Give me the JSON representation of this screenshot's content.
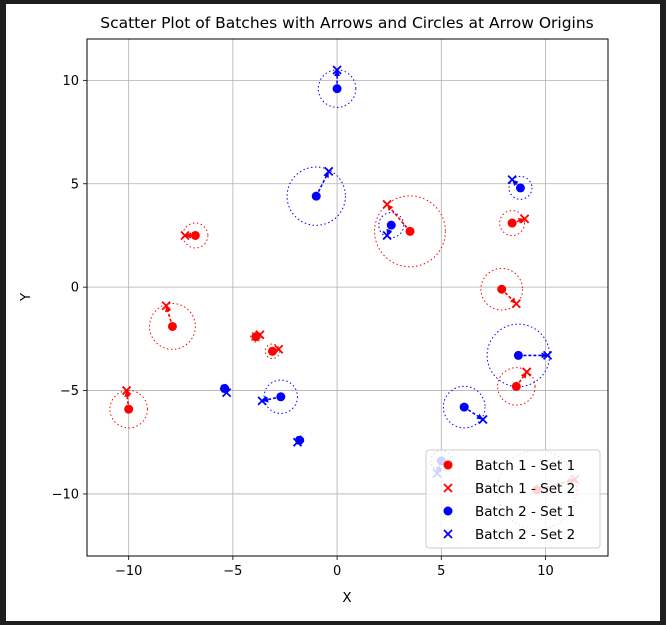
{
  "chart_data": {
    "type": "scatter",
    "title": "Scatter Plot of Batches with Arrows and Circles at Arrow Origins",
    "xlabel": "X",
    "ylabel": "Y",
    "xlim": [
      -12,
      13
    ],
    "ylim": [
      -13,
      12
    ],
    "xticks": [
      -10,
      -5,
      0,
      5,
      10
    ],
    "xtick_labels": [
      "−10",
      "−5",
      "0",
      "5",
      "10"
    ],
    "yticks": [
      -10,
      -5,
      0,
      5,
      10
    ],
    "ytick_labels": [
      "−10",
      "−5",
      "0",
      "5",
      "10"
    ],
    "grid": true,
    "legend_position": "lower-right",
    "series": [
      {
        "name": "Batch 1 - Set 1",
        "marker": "circle",
        "color": "#ff0000",
        "points": [
          [
            -6.8,
            2.5
          ],
          [
            3.5,
            2.7
          ],
          [
            8.4,
            3.1
          ],
          [
            7.9,
            -0.1
          ],
          [
            8.6,
            -4.8
          ],
          [
            -7.9,
            -1.9
          ],
          [
            -10,
            -5.9
          ],
          [
            -3.1,
            -3.1
          ],
          [
            -3.9,
            -2.4
          ],
          [
            9.6,
            -9.8
          ]
        ]
      },
      {
        "name": "Batch 1 - Set 2",
        "marker": "x",
        "color": "#ff0000",
        "points": [
          [
            -7.3,
            2.5
          ],
          [
            2.4,
            4.0
          ],
          [
            9.0,
            3.3
          ],
          [
            8.6,
            -0.8
          ],
          [
            9.1,
            -4.1
          ],
          [
            -8.2,
            -0.9
          ],
          [
            -10.1,
            -5.0
          ],
          [
            -2.8,
            -3.0
          ],
          [
            -3.7,
            -2.3
          ],
          [
            11.4,
            -9.3
          ]
        ]
      },
      {
        "name": "Batch 2 - Set 1",
        "marker": "circle",
        "color": "#0000ff",
        "points": [
          [
            0,
            9.6
          ],
          [
            -1,
            4.4
          ],
          [
            2.6,
            3.0
          ],
          [
            8.8,
            4.8
          ],
          [
            8.7,
            -3.3
          ],
          [
            6.1,
            -5.8
          ],
          [
            -2.7,
            -5.3
          ],
          [
            -5.4,
            -4.9
          ],
          [
            -1.8,
            -7.4
          ],
          [
            5.0,
            -8.4
          ]
        ]
      },
      {
        "name": "Batch 2 - Set 2",
        "marker": "x",
        "color": "#0000ff",
        "points": [
          [
            0,
            10.5
          ],
          [
            -0.4,
            5.6
          ],
          [
            2.4,
            2.5
          ],
          [
            8.4,
            5.2
          ],
          [
            10.1,
            -3.3
          ],
          [
            7.0,
            -6.4
          ],
          [
            -3.6,
            -5.5
          ],
          [
            -5.3,
            -5.1
          ],
          [
            -1.9,
            -7.5
          ],
          [
            4.8,
            -9.0
          ]
        ]
      }
    ],
    "arrows": [
      {
        "from": [
          -6.8,
          2.5
        ],
        "to": [
          -7.3,
          2.5
        ],
        "color": "#ff0000"
      },
      {
        "from": [
          3.5,
          2.7
        ],
        "to": [
          2.4,
          4.0
        ],
        "color": "#ff0000"
      },
      {
        "from": [
          8.4,
          3.1
        ],
        "to": [
          9.0,
          3.3
        ],
        "color": "#ff0000"
      },
      {
        "from": [
          7.9,
          -0.1
        ],
        "to": [
          8.6,
          -0.8
        ],
        "color": "#ff0000"
      },
      {
        "from": [
          8.6,
          -4.8
        ],
        "to": [
          9.1,
          -4.1
        ],
        "color": "#ff0000"
      },
      {
        "from": [
          -7.9,
          -1.9
        ],
        "to": [
          -8.2,
          -0.9
        ],
        "color": "#ff0000"
      },
      {
        "from": [
          -10,
          -5.9
        ],
        "to": [
          -10.1,
          -5.0
        ],
        "color": "#ff0000"
      },
      {
        "from": [
          -3.1,
          -3.1
        ],
        "to": [
          -2.8,
          -3.0
        ],
        "color": "#ff0000"
      },
      {
        "from": [
          -3.9,
          -2.4
        ],
        "to": [
          -3.7,
          -2.3
        ],
        "color": "#ff0000"
      },
      {
        "from": [
          9.6,
          -9.8
        ],
        "to": [
          11.4,
          -9.3
        ],
        "color": "#ff0000"
      },
      {
        "from": [
          0,
          9.6
        ],
        "to": [
          0,
          10.5
        ],
        "color": "#0000ff"
      },
      {
        "from": [
          -1,
          4.4
        ],
        "to": [
          -0.4,
          5.6
        ],
        "color": "#0000ff"
      },
      {
        "from": [
          2.6,
          3.0
        ],
        "to": [
          2.4,
          2.5
        ],
        "color": "#0000ff"
      },
      {
        "from": [
          8.8,
          4.8
        ],
        "to": [
          8.4,
          5.2
        ],
        "color": "#0000ff"
      },
      {
        "from": [
          8.7,
          -3.3
        ],
        "to": [
          10.1,
          -3.3
        ],
        "color": "#0000ff"
      },
      {
        "from": [
          6.1,
          -5.8
        ],
        "to": [
          7.0,
          -6.4
        ],
        "color": "#0000ff"
      },
      {
        "from": [
          -2.7,
          -5.3
        ],
        "to": [
          -3.6,
          -5.5
        ],
        "color": "#0000ff"
      },
      {
        "from": [
          -5.4,
          -4.9
        ],
        "to": [
          -5.3,
          -5.1
        ],
        "color": "#0000ff"
      },
      {
        "from": [
          -1.8,
          -7.4
        ],
        "to": [
          -1.9,
          -7.5
        ],
        "color": "#0000ff"
      },
      {
        "from": [
          5.0,
          -8.4
        ],
        "to": [
          4.8,
          -9.0
        ],
        "color": "#0000ff"
      }
    ],
    "circles": [
      {
        "center": [
          -6.8,
          2.5
        ],
        "radius": 0.6,
        "color": "#ff0000"
      },
      {
        "center": [
          3.5,
          2.7
        ],
        "radius": 1.7,
        "color": "#ff0000"
      },
      {
        "center": [
          8.4,
          3.1
        ],
        "radius": 0.6,
        "color": "#ff0000"
      },
      {
        "center": [
          7.9,
          -0.1
        ],
        "radius": 1.0,
        "color": "#ff0000"
      },
      {
        "center": [
          8.6,
          -4.8
        ],
        "radius": 0.9,
        "color": "#ff0000"
      },
      {
        "center": [
          -7.9,
          -1.9
        ],
        "radius": 1.1,
        "color": "#ff0000"
      },
      {
        "center": [
          -10,
          -5.9
        ],
        "radius": 0.9,
        "color": "#ff0000"
      },
      {
        "center": [
          -3.1,
          -3.1
        ],
        "radius": 0.35,
        "color": "#ff0000"
      },
      {
        "center": [
          -3.9,
          -2.4
        ],
        "radius": 0.25,
        "color": "#ff0000"
      },
      {
        "center": [
          9.6,
          -9.8
        ],
        "radius": 1.9,
        "color": "#ff0000"
      },
      {
        "center": [
          0,
          9.6
        ],
        "radius": 0.9,
        "color": "#0000ff"
      },
      {
        "center": [
          -1,
          4.4
        ],
        "radius": 1.4,
        "color": "#0000ff"
      },
      {
        "center": [
          2.6,
          3.0
        ],
        "radius": 0.6,
        "color": "#0000ff"
      },
      {
        "center": [
          8.8,
          4.8
        ],
        "radius": 0.55,
        "color": "#0000ff"
      },
      {
        "center": [
          8.7,
          -3.3
        ],
        "radius": 1.5,
        "color": "#0000ff"
      },
      {
        "center": [
          6.1,
          -5.8
        ],
        "radius": 1.0,
        "color": "#0000ff"
      },
      {
        "center": [
          -2.7,
          -5.3
        ],
        "radius": 0.8,
        "color": "#0000ff"
      },
      {
        "center": [
          -5.4,
          -4.9
        ],
        "radius": 0.2,
        "color": "#0000ff"
      },
      {
        "center": [
          -1.8,
          -7.4
        ],
        "radius": 0.2,
        "color": "#0000ff"
      },
      {
        "center": [
          5.0,
          -8.4
        ],
        "radius": 0.5,
        "color": "#0000ff"
      }
    ]
  }
}
